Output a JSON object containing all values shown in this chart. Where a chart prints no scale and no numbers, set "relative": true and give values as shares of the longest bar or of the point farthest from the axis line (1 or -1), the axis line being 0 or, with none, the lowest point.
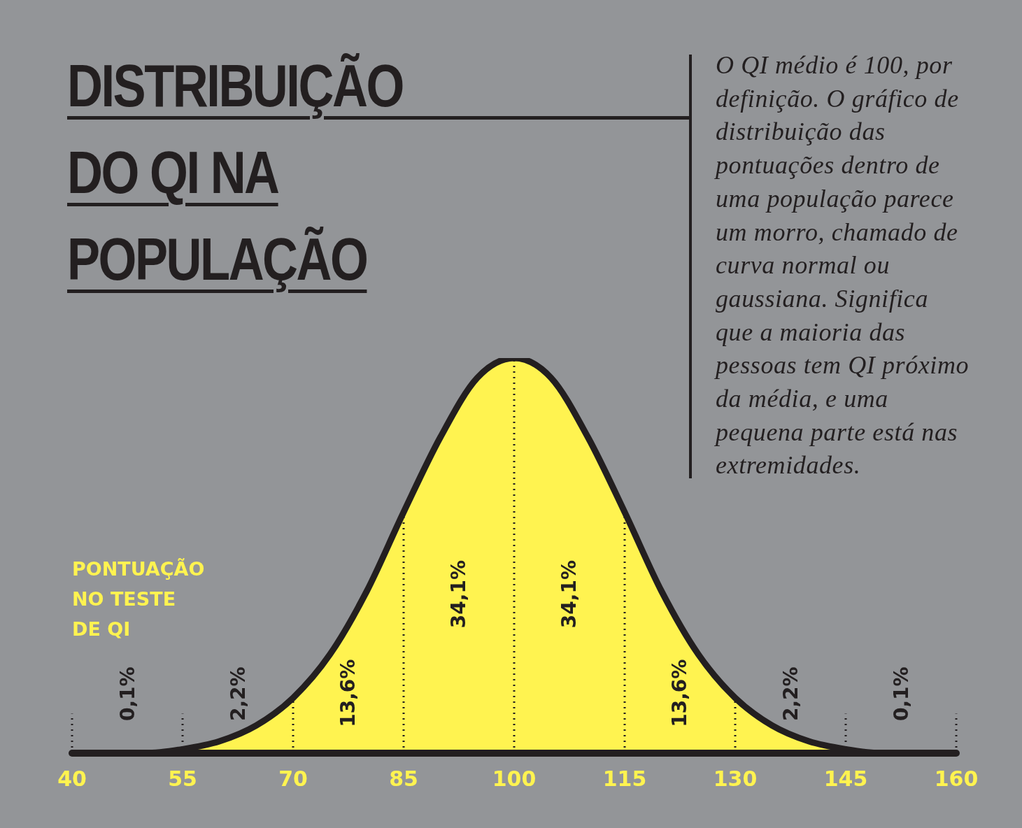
{
  "chart_data": {
    "type": "area",
    "title": "DISTRIBUIÇÃO DO QI NA POPULAÇÃO",
    "subtitle": "O QI médio é 100, por definição. O gráfico de distribuição das pontuações dentro de uma população parece um morro, chamado de curva normal ou gaussiana. Significa que a maioria das pessoas tem QI próximo da média, e uma pequena parte está nas extremidades.",
    "xlabel": "PONTUAÇÃO NO TESTE DE QI",
    "relative": true,
    "x": [
      40,
      45,
      50,
      55,
      60,
      65,
      70,
      75,
      80,
      85,
      90,
      95,
      100,
      105,
      110,
      115,
      120,
      125,
      130,
      135,
      140,
      145,
      150,
      155,
      160
    ],
    "series": [
      {
        "color": "#fff350",
        "values": [
          0,
          0,
          0,
          0.01,
          0.03,
          0.07,
          0.14,
          0.25,
          0.41,
          0.61,
          0.8,
          0.95,
          1,
          0.95,
          0.8,
          0.61,
          0.41,
          0.25,
          0.14,
          0.07,
          0.03,
          0.01,
          0,
          0,
          0
        ]
      }
    ],
    "xlim": [
      40,
      160
    ],
    "xticks": [
      40,
      55,
      70,
      85,
      100,
      115,
      130,
      145,
      160
    ],
    "ref_lines": [
      {
        "axis": "x",
        "value": 40,
        "line_style": "dotted"
      },
      {
        "axis": "x",
        "value": 55,
        "line_style": "dotted"
      },
      {
        "axis": "x",
        "value": 70,
        "line_style": "dotted"
      },
      {
        "axis": "x",
        "value": 85,
        "line_style": "dotted"
      },
      {
        "axis": "x",
        "value": 100,
        "line_style": "dotted"
      },
      {
        "axis": "x",
        "value": 115,
        "line_style": "dotted"
      },
      {
        "axis": "x",
        "value": 130,
        "line_style": "dotted"
      },
      {
        "axis": "x",
        "value": 145,
        "line_style": "dotted"
      },
      {
        "axis": "x",
        "value": 160,
        "line_style": "dotted"
      }
    ],
    "annotations": [
      "0,1%",
      "2,2%",
      "13,6%",
      "34,1%",
      "34,1%",
      "13,6%",
      "2,2%",
      "0,1%"
    ],
    "grid": false,
    "legend": false,
    "line_style": "solid",
    "marker": "none"
  }
}
